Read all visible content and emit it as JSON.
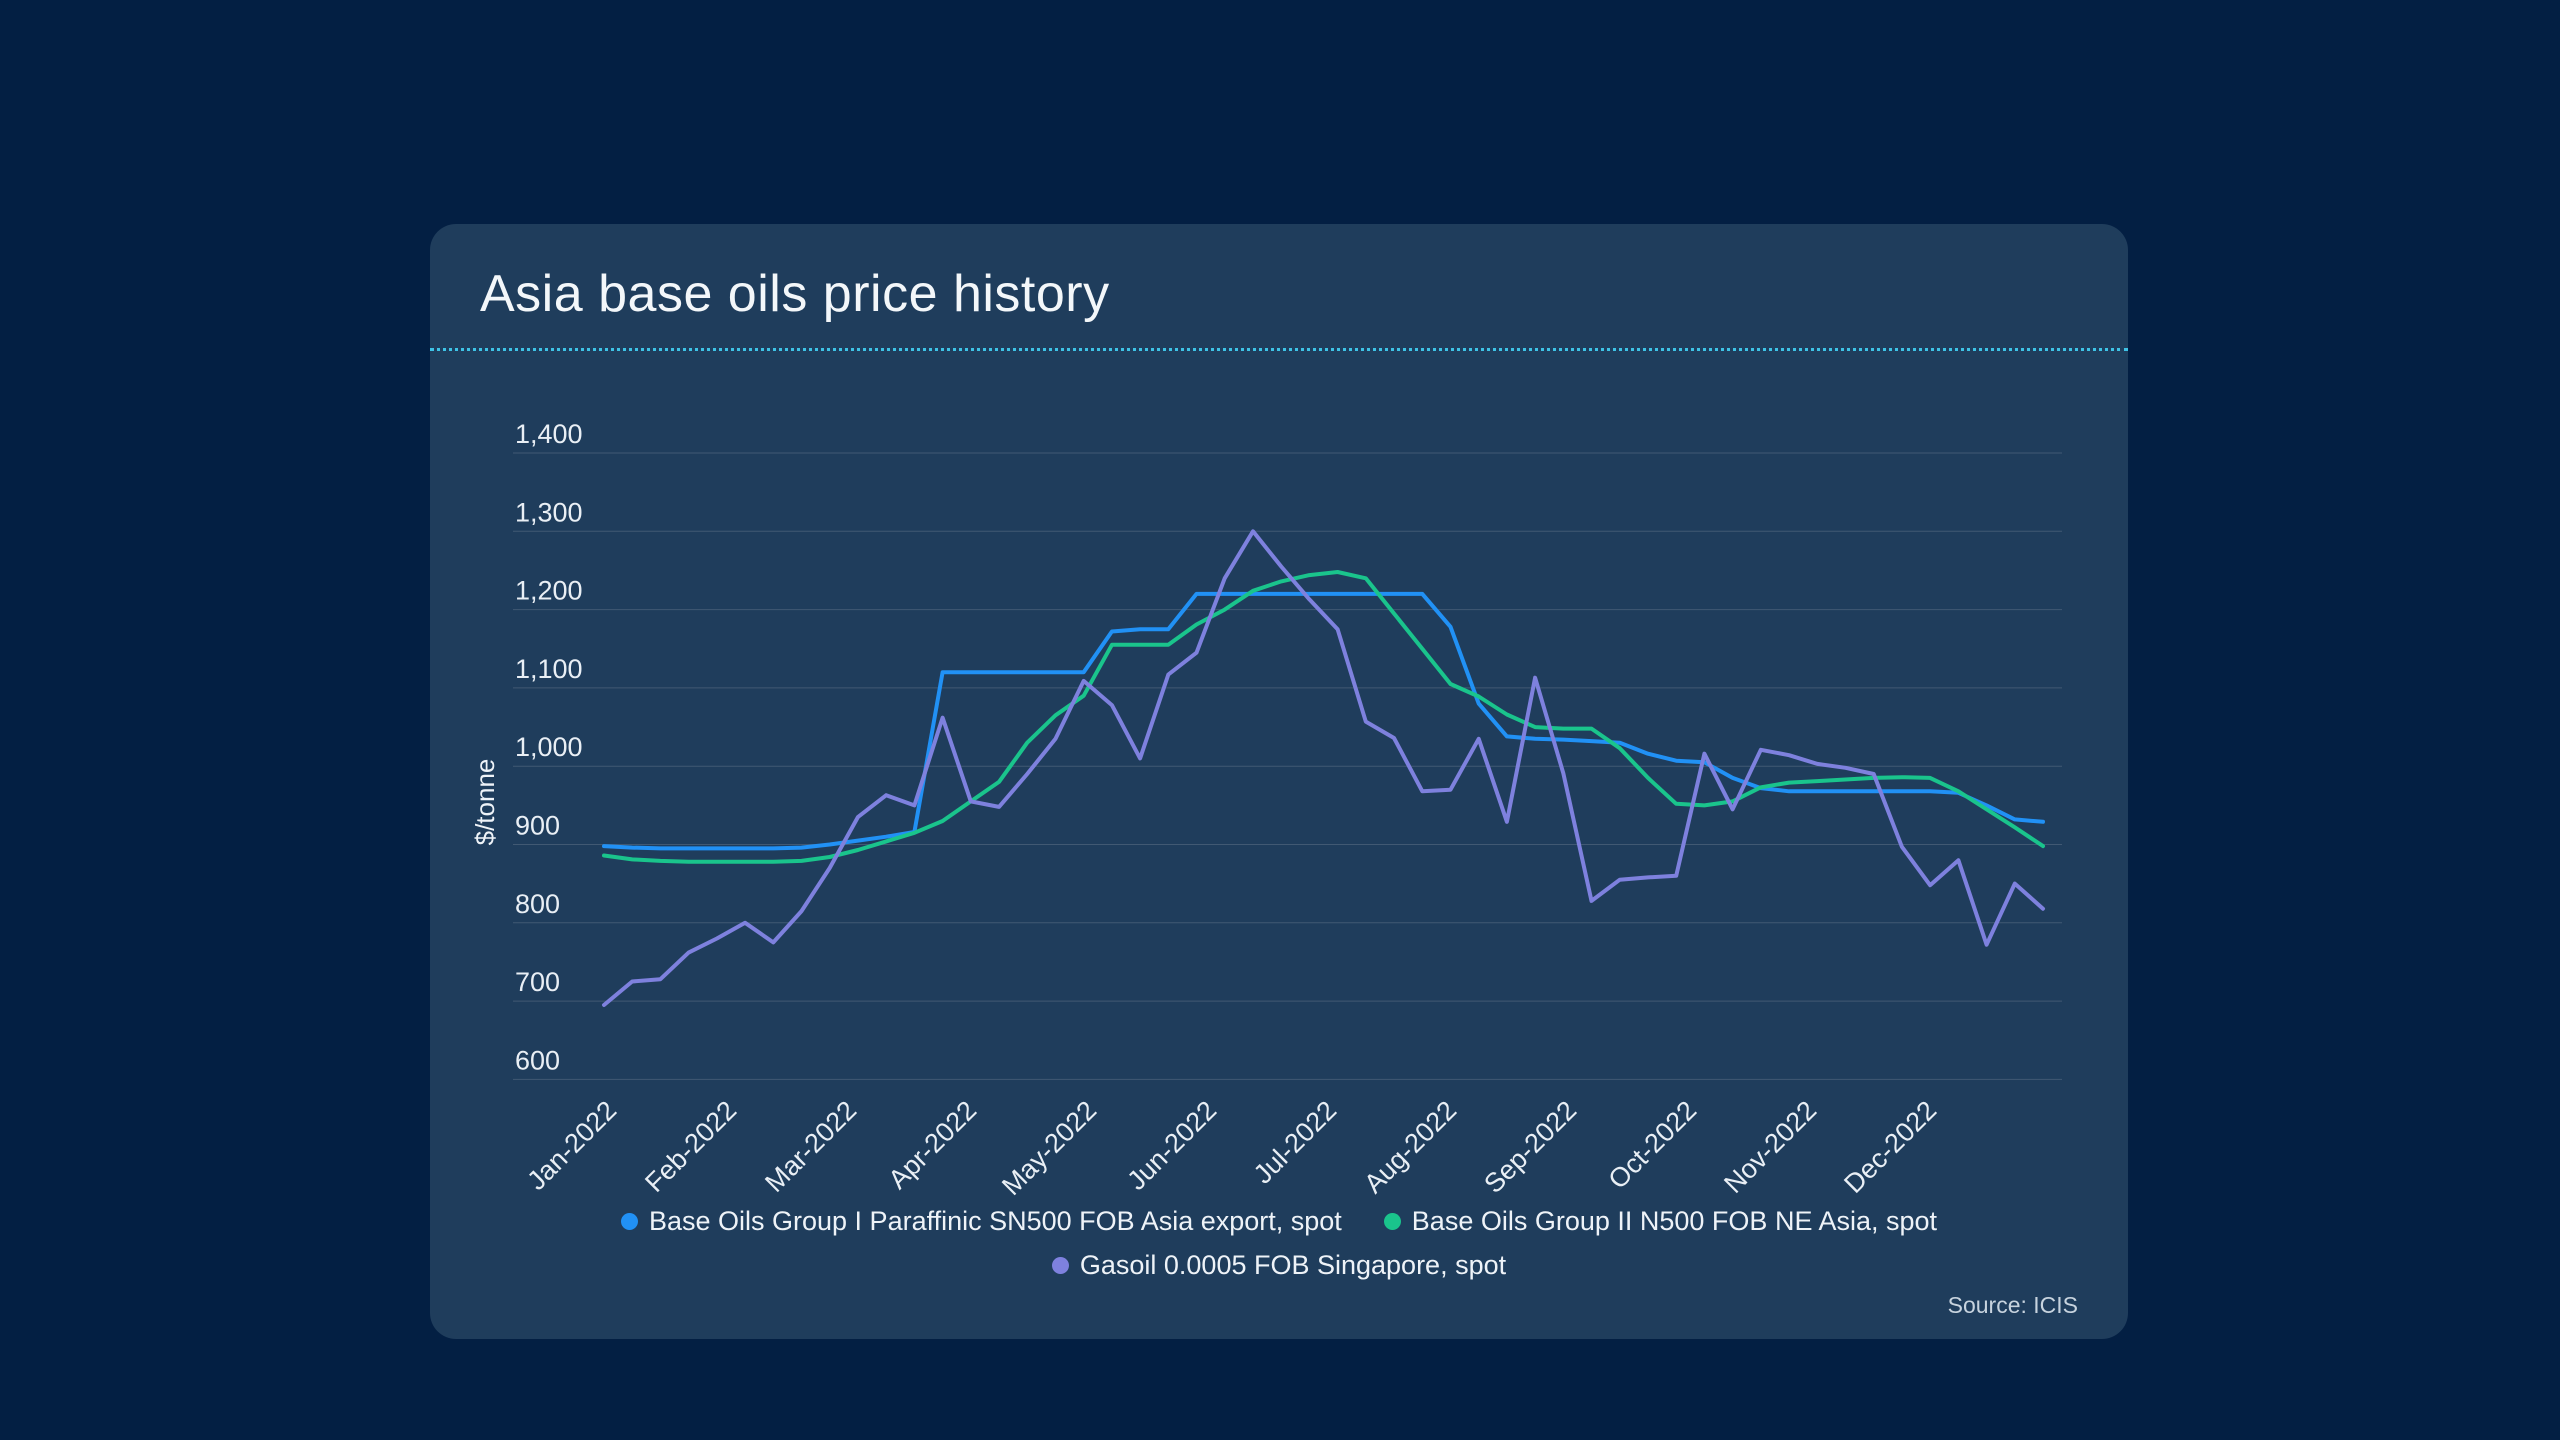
{
  "page": {
    "background": "#031f43"
  },
  "card": {
    "background": "#1f3d5c",
    "title": "Asia base oils price history",
    "divider_color": "#3ec3e6",
    "source": "Source: ICIS"
  },
  "chart_data": {
    "type": "line",
    "title": "Asia base oils price history",
    "xlabel": "",
    "ylabel": "$/tonne",
    "ylim": [
      600,
      1400
    ],
    "ytick_interval": 100,
    "yticks": [
      "1,400",
      "1,300",
      "1,200",
      "1,100",
      "1,000",
      "900",
      "800",
      "700",
      "600"
    ],
    "x_tick_labels": [
      "Jan-2022",
      "Feb-2022",
      "Mar-2022",
      "Apr-2022",
      "May-2022",
      "Jun-2022",
      "Jul-2022",
      "Aug-2022",
      "Sep-2022",
      "Oct-2022",
      "Nov-2022",
      "Dec-2022"
    ],
    "frequency": "weekly",
    "points_per_series": 52,
    "grid": true,
    "legend_position": "bottom-center",
    "series": [
      {
        "name": "Base Oils Group I Paraffinic SN500 FOB Asia export, spot",
        "color": "#2191f5",
        "values": [
          898,
          896,
          895,
          895,
          895,
          895,
          895,
          896,
          900,
          905,
          910,
          916,
          1120,
          1120,
          1120,
          1120,
          1120,
          1120,
          1172,
          1175,
          1175,
          1220,
          1220,
          1220,
          1220,
          1220,
          1220,
          1220,
          1220,
          1220,
          1178,
          1080,
          1038,
          1035,
          1034,
          1032,
          1030,
          1016,
          1007,
          1005,
          985,
          972,
          968,
          968,
          968,
          968,
          968,
          968,
          966,
          950,
          932,
          929
        ]
      },
      {
        "name": "Base Oils Group II N500 FOB NE Asia, spot",
        "color": "#1ac48c",
        "values": [
          886,
          881,
          879,
          878,
          878,
          878,
          878,
          879,
          884,
          893,
          904,
          915,
          930,
          955,
          980,
          1030,
          1065,
          1090,
          1155,
          1155,
          1155,
          1181,
          1200,
          1224,
          1236,
          1244,
          1248,
          1240,
          1195,
          1150,
          1105,
          1089,
          1066,
          1050,
          1048,
          1048,
          1023,
          985,
          952,
          950,
          955,
          973,
          979,
          981,
          983,
          985,
          986,
          985,
          968,
          945,
          922,
          898
        ]
      },
      {
        "name": "Gasoil 0.0005 FOB Singapore, spot",
        "color": "#7e81de",
        "values": [
          695,
          725,
          728,
          762,
          780,
          800,
          775,
          815,
          870,
          935,
          963,
          950,
          1062,
          955,
          948,
          990,
          1035,
          1109,
          1078,
          1010,
          1117,
          1145,
          1240,
          1300,
          1255,
          1213,
          1175,
          1057,
          1036,
          968,
          970,
          1035,
          929,
          1113,
          991,
          828,
          855,
          858,
          860,
          1016,
          945,
          1021,
          1014,
          1003,
          998,
          990,
          897,
          848,
          880,
          772,
          850,
          818
        ]
      }
    ]
  }
}
